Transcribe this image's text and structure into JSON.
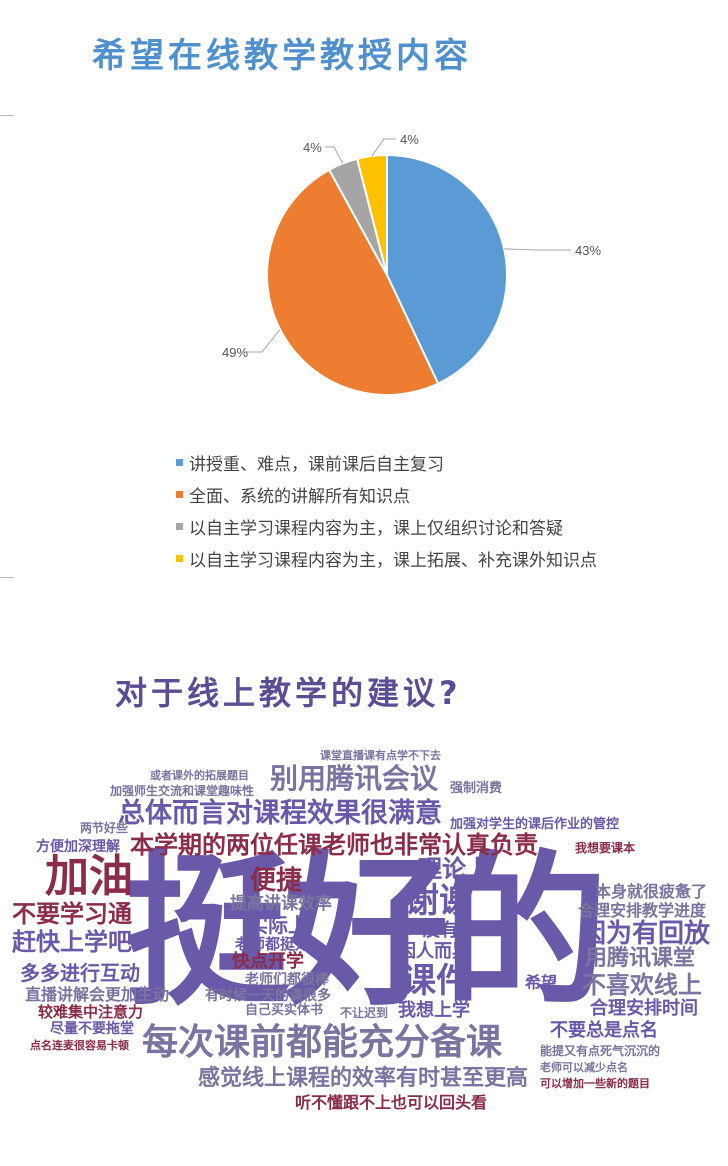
{
  "chart_data": {
    "type": "pie",
    "title": "希望在线教学教授内容",
    "categories": [
      "讲授重、难点，课前课后自主复习",
      "全面、系统的讲解所有知识点",
      "以自主学习课程内容为主，课上仅组织讨论和答疑",
      "以自主学习课程内容为主，课上拓展、补充课外知识点"
    ],
    "values": [
      43,
      49,
      4,
      4
    ],
    "data_labels": [
      "43%",
      "49%",
      "4%",
      "4%"
    ],
    "colors": [
      "#5b9bd5",
      "#ed7d31",
      "#a5a5a5",
      "#ffc000"
    ],
    "legend_position": "bottom"
  },
  "wordcloud": {
    "title": "对于线上教学的建议?",
    "colors": {
      "purple": "#6a58a8",
      "maroon": "#8b2c48",
      "gray": "#7a74a0"
    },
    "words": [
      "挺好的",
      "别用腾讯会议",
      "总体而言对课程效果很满意",
      "本学期的两位任课老师也非常认真负责",
      "加油",
      "不要学习通",
      "赶快上学吧",
      "多多进行互动",
      "直播讲解会更加生动",
      "较难集中注意力",
      "尽量不要拖堂",
      "点名连麦很容易卡顿",
      "方便加深理解",
      "两节好些",
      "加强师生交流和课堂趣味性",
      "或者课外的拓展题目",
      "便捷",
      "提高讲课效率",
      "实际上",
      "老师都挺好",
      "快点开学",
      "老师们都很棒",
      "有时候一天的课很多",
      "自己买实体书",
      "每次课前都能充分备课",
      "感觉线上课程的效率有时甚至更高",
      "听不懂跟不上也可以回头看",
      "理论上",
      "谢谢",
      "没有了",
      "因人而异",
      "课件",
      "我想上学",
      "希望",
      "本身就很疲惫了",
      "合理安排教学进度",
      "因为有回放",
      "用腾讯课堂",
      "不喜欢线上",
      "合理安排时间",
      "不要总是点名",
      "我想要课本",
      "强制消费",
      "加强对学生的课后作业的管控",
      "课堂直播课有点学不下去",
      "可以增加一些新的题目",
      "能提又有点死气沉沉的",
      "老师可以减少点名",
      "不让迟到"
    ]
  }
}
